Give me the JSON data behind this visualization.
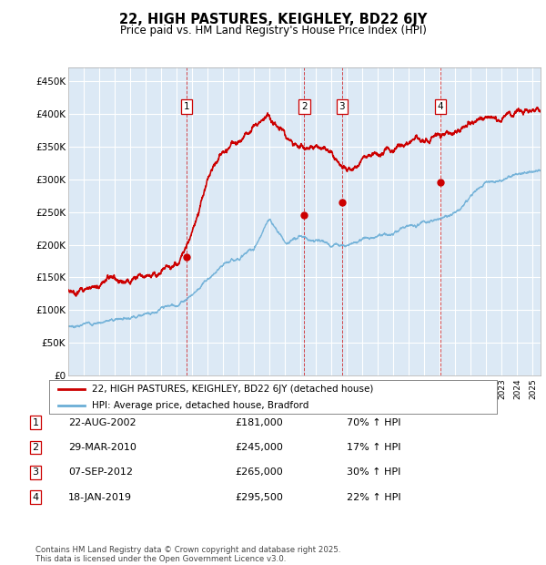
{
  "title": "22, HIGH PASTURES, KEIGHLEY, BD22 6JY",
  "subtitle": "Price paid vs. HM Land Registry's House Price Index (HPI)",
  "ylim": [
    0,
    470000
  ],
  "yticks": [
    0,
    50000,
    100000,
    150000,
    200000,
    250000,
    300000,
    350000,
    400000,
    450000
  ],
  "background_color": "#dce9f5",
  "grid_color": "#ffffff",
  "red_color": "#cc0000",
  "blue_color": "#6baed6",
  "sale_dates_decimal": [
    2002.637,
    2010.237,
    2012.681,
    2019.046
  ],
  "sale_prices": [
    181000,
    245000,
    265000,
    295500
  ],
  "sale_labels": [
    "1",
    "2",
    "3",
    "4"
  ],
  "legend_red": "22, HIGH PASTURES, KEIGHLEY, BD22 6JY (detached house)",
  "legend_blue": "HPI: Average price, detached house, Bradford",
  "table_data": [
    [
      "1",
      "22-AUG-2002",
      "£181,000",
      "70% ↑ HPI"
    ],
    [
      "2",
      "29-MAR-2010",
      "£245,000",
      "17% ↑ HPI"
    ],
    [
      "3",
      "07-SEP-2012",
      "£265,000",
      "30% ↑ HPI"
    ],
    [
      "4",
      "18-JAN-2019",
      "£295,500",
      "22% ↑ HPI"
    ]
  ],
  "footer": "Contains HM Land Registry data © Crown copyright and database right 2025.\nThis data is licensed under the Open Government Licence v3.0.",
  "hpi_base": {
    "1995": 75000,
    "1996": 78000,
    "1997": 82000,
    "1998": 86000,
    "1999": 91000,
    "2000": 97000,
    "2001": 102000,
    "2002": 108000,
    "2003": 125000,
    "2004": 148000,
    "2005": 165000,
    "2006": 180000,
    "2007": 195000,
    "2008": 238000,
    "2009": 205000,
    "2010": 210000,
    "2011": 208000,
    "2012": 200000,
    "2013": 203000,
    "2014": 210000,
    "2015": 215000,
    "2016": 220000,
    "2017": 228000,
    "2018": 233000,
    "2019": 238000,
    "2020": 245000,
    "2021": 270000,
    "2022": 295000,
    "2023": 300000,
    "2024": 308000,
    "2025": 315000
  },
  "prop_base": {
    "1995": 129000,
    "1996": 133000,
    "1997": 138000,
    "1998": 143000,
    "1999": 148000,
    "2000": 152000,
    "2001": 158000,
    "2002": 165000,
    "2003": 220000,
    "2004": 300000,
    "2005": 340000,
    "2006": 360000,
    "2007": 385000,
    "2008": 400000,
    "2009": 370000,
    "2010": 345000,
    "2011": 350000,
    "2012": 340000,
    "2013": 320000,
    "2014": 330000,
    "2015": 340000,
    "2016": 350000,
    "2017": 355000,
    "2018": 360000,
    "2019": 365000,
    "2020": 370000,
    "2021": 385000,
    "2022": 400000,
    "2023": 395000,
    "2024": 400000,
    "2025": 405000
  }
}
